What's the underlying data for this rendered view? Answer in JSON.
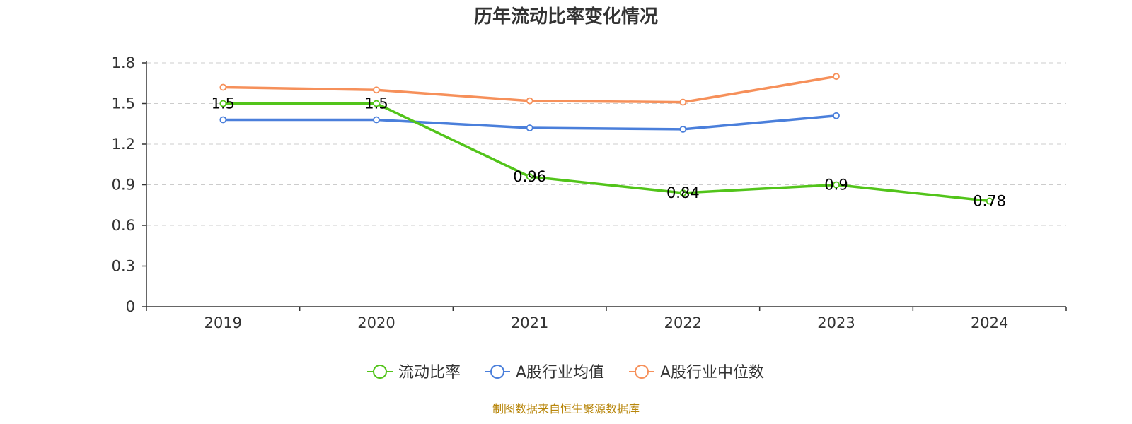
{
  "chart_data": {
    "type": "line",
    "title": "历年流动比率变化情况",
    "categories": [
      "2019",
      "2020",
      "2021",
      "2022",
      "2023",
      "2024"
    ],
    "ylim": [
      0,
      1.8
    ],
    "yticks": [
      "0",
      "0.3",
      "0.6",
      "0.9",
      "1.2",
      "1.5",
      "1.8"
    ],
    "grid": true,
    "legend_position": "bottom",
    "series": [
      {
        "name": "流动比率",
        "color": "#52c41a",
        "values": [
          1.5,
          1.5,
          0.96,
          0.84,
          0.9,
          0.78
        ],
        "labels": [
          "1.5",
          "1.5",
          "0.96",
          "0.84",
          "0.9",
          "0.78"
        ]
      },
      {
        "name": "A股行业均值",
        "color": "#4a7fdb",
        "values": [
          1.38,
          1.38,
          1.32,
          1.31,
          1.41,
          null
        ]
      },
      {
        "name": "A股行业中位数",
        "color": "#f6905a",
        "values": [
          1.62,
          1.6,
          1.52,
          1.51,
          1.7,
          null
        ]
      }
    ],
    "source": "制图数据来自恒生聚源数据库"
  }
}
